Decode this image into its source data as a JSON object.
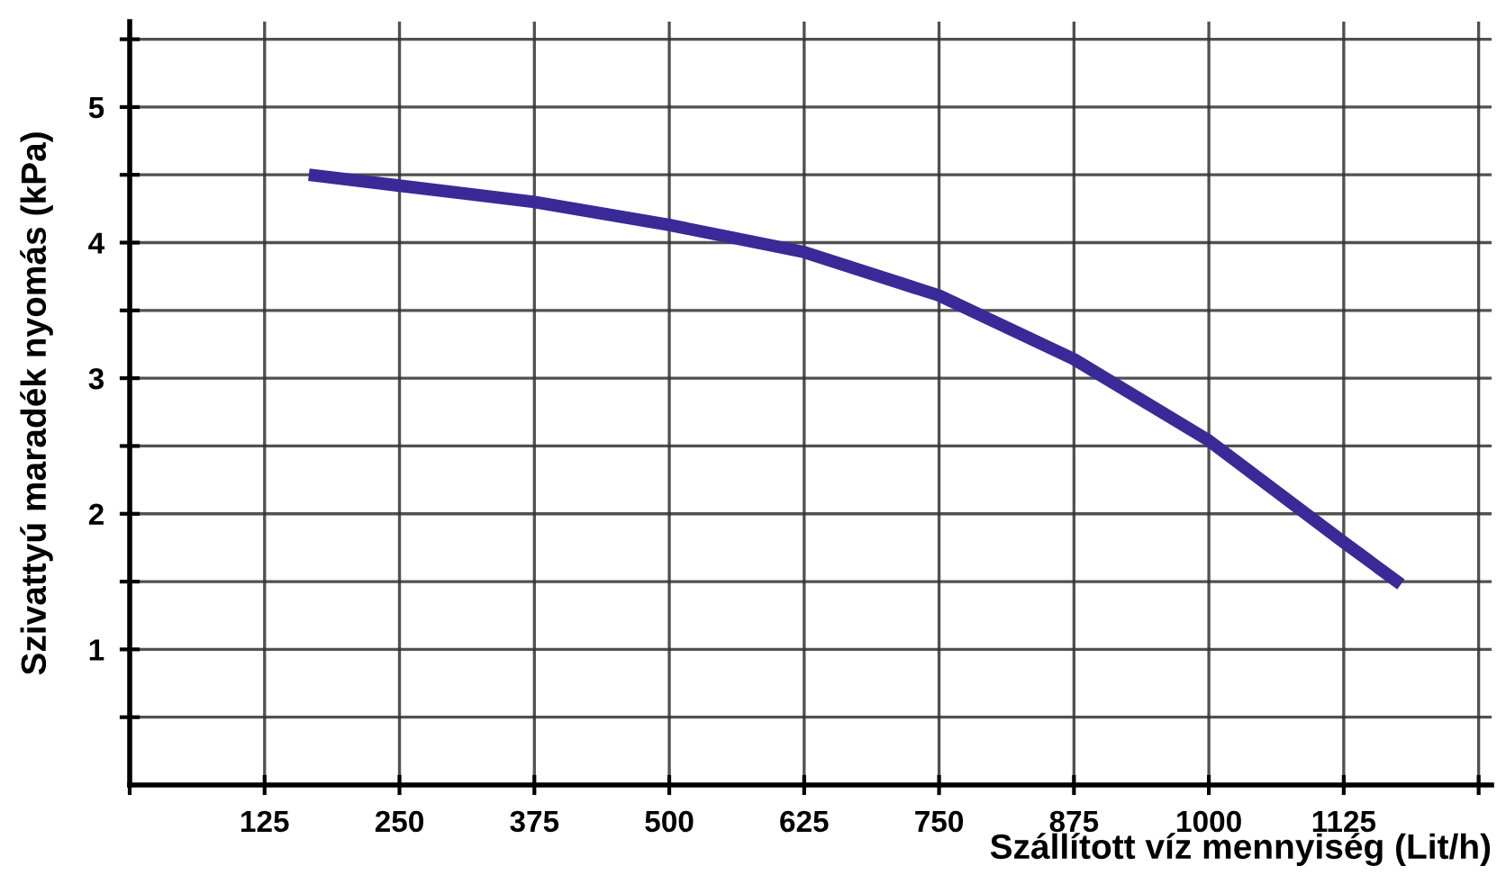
{
  "chart_data": {
    "type": "line",
    "xlabel": "Szállított víz mennyiség (Lit/h)",
    "ylabel": "Szivattyú maradék nyomás (kPa)",
    "x": [
      166,
      250,
      375,
      500,
      625,
      750,
      875,
      1000,
      1125,
      1178
    ],
    "series": [
      {
        "color": "#3a2a98",
        "values": [
          4.5,
          4.42,
          4.3,
          4.13,
          3.93,
          3.61,
          3.14,
          2.54,
          1.79,
          1.48
        ]
      }
    ],
    "xlim": [
      0,
      1262
    ],
    "ylim": [
      0,
      5.63
    ],
    "xticks": [
      {
        "value": 0,
        "label": null
      },
      125,
      250,
      375,
      500,
      625,
      750,
      875,
      1000,
      1125,
      {
        "value": 1250,
        "label": null
      }
    ],
    "yticks": [
      {
        "value": 0.5,
        "label": null
      },
      1,
      {
        "value": 1.5,
        "label": null
      },
      2,
      {
        "value": 2.5,
        "label": null
      },
      3,
      {
        "value": 3.5,
        "label": null
      },
      4,
      {
        "value": 4.5,
        "label": null
      },
      5,
      {
        "value": 5.5,
        "label": null
      }
    ],
    "grid": true,
    "marker": "none",
    "line_style": "solid"
  }
}
